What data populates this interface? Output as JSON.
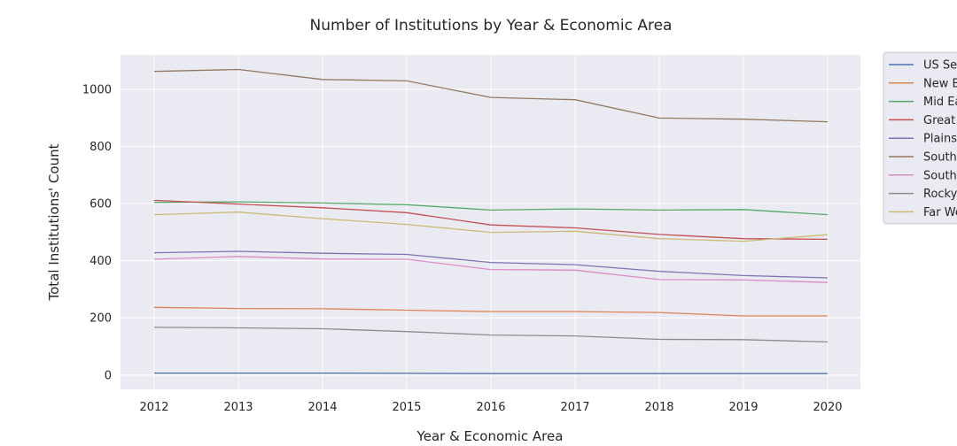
{
  "chart_data": {
    "type": "line",
    "title": "Number of Institutions by Year & Economic Area",
    "xlabel": "Year & Economic Area",
    "ylabel": "Total Institutions' Count",
    "x": [
      2012,
      2013,
      2014,
      2015,
      2016,
      2017,
      2018,
      2019,
      2020
    ],
    "ylim": [
      -50,
      1120
    ],
    "yticks": [
      0,
      200,
      400,
      600,
      800,
      1000
    ],
    "grid": true,
    "legend_position": "outside-right",
    "background": "#eaeaf2",
    "series": [
      {
        "name": "US Service Schools",
        "color": "#4c72b0",
        "values": [
          7,
          7,
          7,
          6,
          5,
          5,
          5,
          5,
          5
        ]
      },
      {
        "name": "New England",
        "color": "#dd8452",
        "values": [
          237,
          233,
          232,
          227,
          222,
          222,
          219,
          207,
          207
        ]
      },
      {
        "name": "Mid East",
        "color": "#55a868",
        "values": [
          604,
          606,
          602,
          596,
          577,
          581,
          577,
          579,
          561
        ]
      },
      {
        "name": "Great Lakes",
        "color": "#c44e52",
        "values": [
          611,
          598,
          585,
          568,
          525,
          515,
          492,
          477,
          475
        ]
      },
      {
        "name": "Plains",
        "color": "#8172b3",
        "values": [
          428,
          433,
          426,
          422,
          394,
          386,
          363,
          348,
          340
        ]
      },
      {
        "name": "Southeast",
        "color": "#937860",
        "values": [
          1062,
          1069,
          1034,
          1029,
          971,
          963,
          899,
          895,
          886
        ]
      },
      {
        "name": "Southwest",
        "color": "#da8bc3",
        "values": [
          405,
          415,
          406,
          405,
          369,
          367,
          334,
          333,
          324
        ]
      },
      {
        "name": "Rocky Mountains",
        "color": "#8c8c8c",
        "values": [
          167,
          165,
          162,
          152,
          140,
          137,
          125,
          124,
          116
        ]
      },
      {
        "name": "Far West",
        "color": "#ccb974",
        "values": [
          561,
          570,
          547,
          527,
          499,
          503,
          477,
          468,
          491
        ]
      }
    ]
  }
}
